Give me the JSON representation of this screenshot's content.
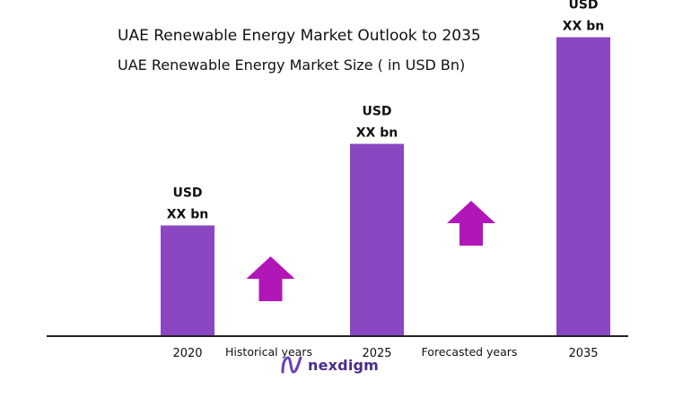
{
  "chart_data": {
    "type": "bar",
    "title": "UAE Renewable Energy Market Outlook to 2035",
    "subtitle": "UAE Renewable Energy Market Size  ( in USD Bn)",
    "categories": [
      "2020",
      "2025",
      "2035"
    ],
    "values": [
      0.35,
      0.61,
      0.95
    ],
    "ylim": [
      0,
      1
    ],
    "data_labels": [
      [
        "USD",
        "XX bn"
      ],
      [
        "USD",
        "XX bn"
      ],
      [
        "USD",
        "XX bn"
      ]
    ],
    "annotations": [
      "Historical years",
      "Forecasted years"
    ],
    "bar_color": "#8a47c1",
    "arrow_color": "#b116b8",
    "grid": false,
    "legend": "none"
  },
  "brand": {
    "name": "nexdigm",
    "logo_icon": "nexdigm-logo-icon",
    "color": "#4a2c8c"
  }
}
